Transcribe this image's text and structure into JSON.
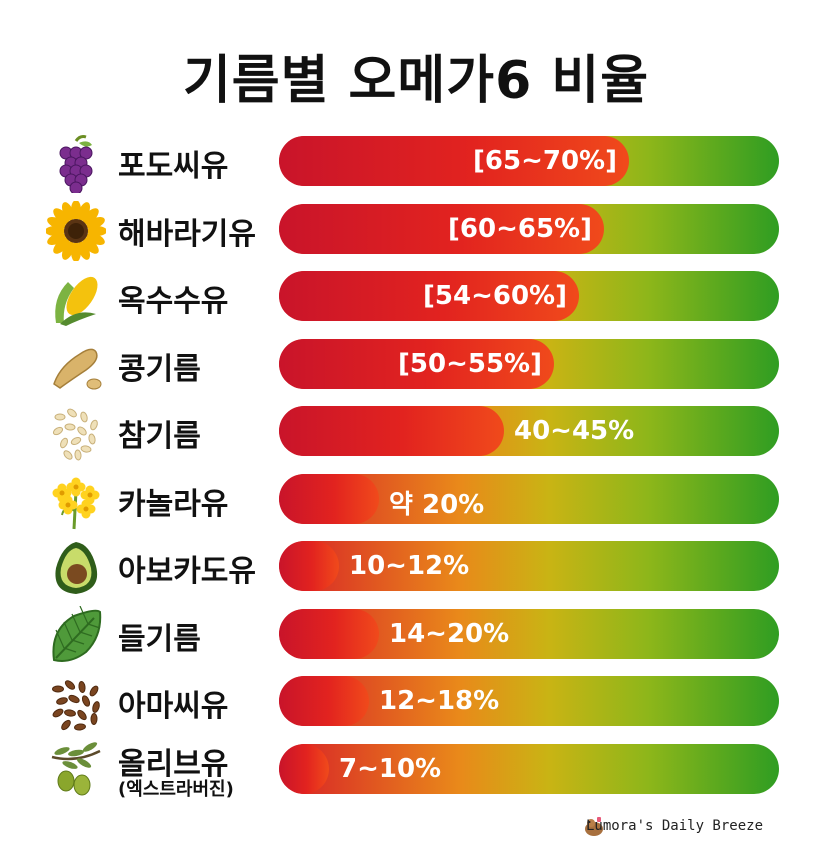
{
  "title": "기름별 오메가6 비율",
  "credit": "Lumora's Daily Breeze",
  "colors": {
    "fill_start": "#c9142a",
    "fill_end": "#f04a1b",
    "track_start": "#d71e28",
    "track_end": "#2f9d22"
  },
  "chart_data": {
    "type": "bar",
    "orientation": "horizontal",
    "xlim": [
      0,
      100
    ],
    "categories": [
      "포도씨유",
      "해바라기유",
      "옥수수유",
      "콩기름",
      "참기름",
      "카놀라유",
      "아보카도유",
      "들기름",
      "아마씨유",
      "올리브유"
    ],
    "subcategories": [
      "",
      "",
      "",
      "",
      "",
      "",
      "",
      "",
      "",
      "(엑스트라버진)"
    ],
    "ranges": [
      [
        65,
        70
      ],
      [
        60,
        65
      ],
      [
        54,
        60
      ],
      [
        50,
        55
      ],
      [
        40,
        45
      ],
      [
        20,
        20
      ],
      [
        10,
        12
      ],
      [
        14,
        20
      ],
      [
        12,
        18
      ],
      [
        7,
        10
      ]
    ],
    "data_labels": [
      "[65~70%]",
      "[60~65%]",
      "[54~60%]",
      "[50~55%]",
      "40~45%",
      "약 20%",
      "10~12%",
      "14~20%",
      "12~18%",
      "7~10%"
    ],
    "icons": [
      "grapes-icon",
      "sunflower-icon",
      "corn-icon",
      "soybean-icon",
      "sesame-seeds-icon",
      "canola-flower-icon",
      "avocado-icon",
      "perilla-leaf-icon",
      "flaxseed-icon",
      "olive-branch-icon"
    ]
  }
}
